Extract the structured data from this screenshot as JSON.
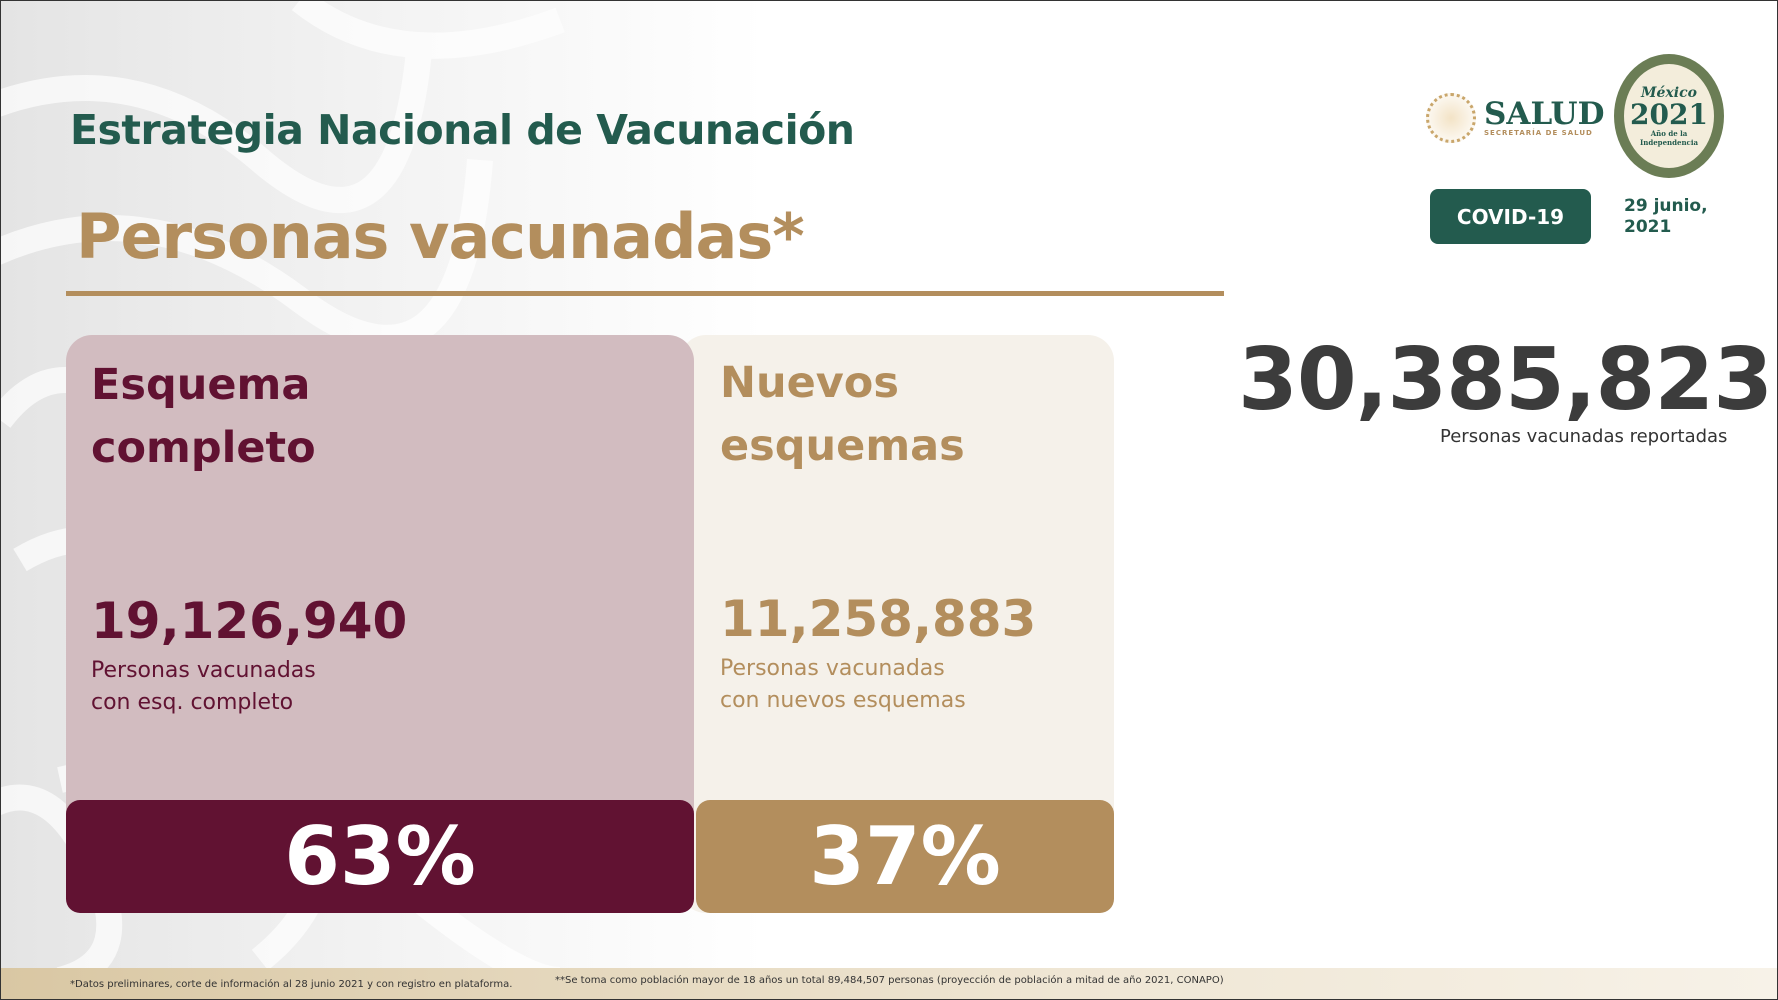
{
  "header": {
    "title": "Estrategia Nacional de Vacunación",
    "subtitle": "Personas vacunadas*"
  },
  "logos": {
    "salud": "SALUD",
    "salud_sub": "SECRETARÍA DE SALUD",
    "year_logo": {
      "line1": "México",
      "line2": "2021",
      "line3": "Año de la Independencia"
    }
  },
  "badge": "COVID-19",
  "date": "29 junio, 2021",
  "total": {
    "value": "30,385,823",
    "caption": "Personas vacunadas reportadas"
  },
  "cards": [
    {
      "heading_1": "Esquema",
      "heading_2": "completo",
      "value": "19,126,940",
      "caption_1": "Personas vacunadas",
      "caption_2": "con esq. completo",
      "percent": "63%",
      "percent_value": 63,
      "color": "#611232"
    },
    {
      "heading_1": "Nuevos",
      "heading_2": "esquemas",
      "value": "11,258,883",
      "caption_1": "Personas vacunadas",
      "caption_2": "con nuevos esquemas",
      "percent": "37%",
      "percent_value": 37,
      "color": "#b38e5d"
    }
  ],
  "footer": {
    "note1": "*Datos preliminares, corte de información al  28 junio 2021 y con registro en plataforma.",
    "note2": "**Se toma como población mayor de 18 años un total 89,484,507 personas (proyección de población a mitad de año 2021, CONAPO)"
  }
}
